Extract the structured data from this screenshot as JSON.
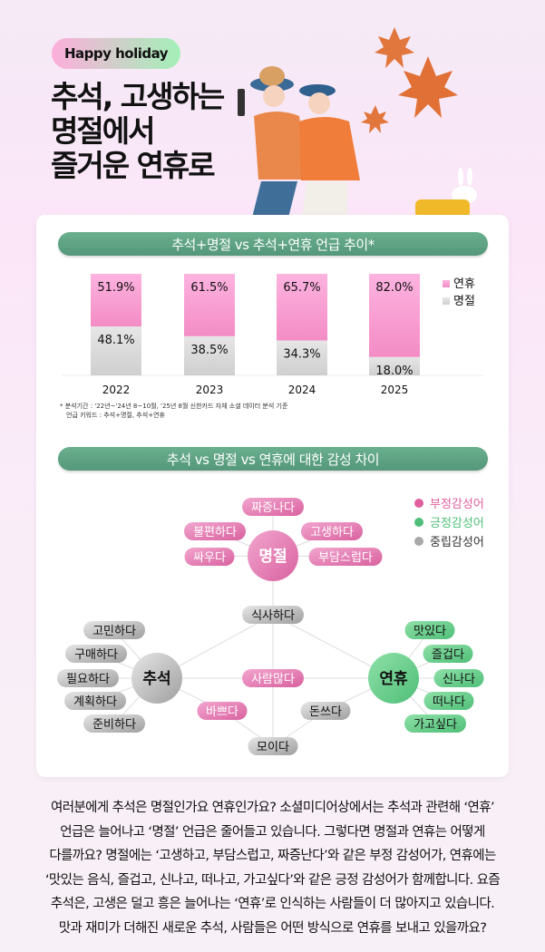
{
  "header": {
    "badge": "Happy holiday",
    "title_lines": [
      "추석, 고생하는",
      "명절에서",
      "즐거운 연휴로"
    ]
  },
  "section1": {
    "title": "추석+명절 vs 추석+연휴 언급 추이*",
    "note_lines": [
      "* 분석기간 : '22년~'24년 8~10월, '25년 8월 신한카드 자체 소셜 데이터 분석 기준",
      "언급 키워드 : 추석+명절, 추석+연휴"
    ]
  },
  "chart_data": {
    "type": "bar",
    "stacked": true,
    "percent": true,
    "categories": [
      "2022",
      "2023",
      "2024",
      "2025"
    ],
    "series": [
      {
        "name": "명절",
        "values": [
          48.1,
          38.5,
          34.3,
          18.0
        ],
        "labels": [
          "48.1%",
          "38.5%",
          "34.3%",
          "18.0%"
        ],
        "color": "#d9d9d9"
      },
      {
        "name": "연휴",
        "values": [
          51.9,
          61.5,
          65.7,
          82.0
        ],
        "labels": [
          "51.9%",
          "61.5%",
          "65.7%",
          "82.0%"
        ],
        "color": "#f9a8d8"
      }
    ],
    "ylim": [
      0,
      100
    ],
    "legend": "right"
  },
  "section2": {
    "title": "추석 vs 명절 vs 연휴에 대한 감성 차이",
    "legend": [
      {
        "label": "부정감성어",
        "color": "#e0609e"
      },
      {
        "label": "긍정감성어",
        "color": "#4fbf78"
      },
      {
        "label": "중립감성어",
        "color": "#a8a8a8"
      }
    ],
    "hubs": {
      "myeongjeol": "명절",
      "chuseok": "추석",
      "yeonhyu": "연휴"
    },
    "negative_words": [
      "짜증나다",
      "불편하다",
      "고생하다",
      "싸우다",
      "부담스럽다",
      "사람많다",
      "바쁘다"
    ],
    "positive_words": [
      "맛있다",
      "즐겁다",
      "신나다",
      "떠나다",
      "가고싶다"
    ],
    "neutral_words": [
      "식사하다",
      "고민하다",
      "구매하다",
      "필요하다",
      "계획하다",
      "준비하다",
      "돈쓰다",
      "모이다"
    ]
  },
  "body_text": [
    "여러분에게 추석은 명절인가요 연휴인가요? 소셜미디어상에서는 추석과 관련해 ‘연휴’",
    "언급은 늘어나고 ‘명절’ 언급은 줄어들고 있습니다. 그렇다면 명절과 연휴는 어떻게",
    "다를까요? 명절에는 ‘고생하고, 부담스럽고, 짜증난다’와 같은 부정 감성어가, 연휴에는",
    "‘맛있는 음식, 즐겁고, 신나고, 떠나고, 가고싶다’와 같은 긍정 감성어가 함께합니다. 요즘",
    "추석은, 고생은 덜고 흥은 늘어나는 ‘연휴’로 인식하는 사람들이 더 많아지고 있습니다.",
    "맛과 재미가 더해진 새로운 추석, 사람들은 어떤 방식으로 연휴를 보내고 있을까요?"
  ]
}
